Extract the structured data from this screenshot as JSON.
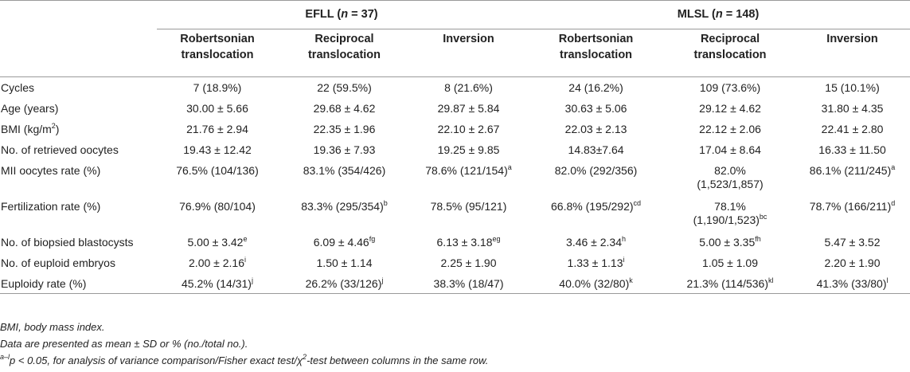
{
  "groups": [
    {
      "name": "EFLL",
      "n_prefix": "(",
      "n_var": "n",
      "n_rest": " = 37)"
    },
    {
      "name": "MLSL",
      "n_prefix": "(",
      "n_var": "n",
      "n_rest": " = 148)"
    }
  ],
  "subheaders": [
    {
      "l1": "Robertsonian",
      "l2": "translocation"
    },
    {
      "l1": "Reciprocal",
      "l2": "translocation"
    },
    {
      "l1": "Inversion",
      "l2": ""
    },
    {
      "l1": "Robertsonian",
      "l2": "translocation"
    },
    {
      "l1": "Reciprocal",
      "l2": "translocation"
    },
    {
      "l1": "Inversion",
      "l2": ""
    }
  ],
  "rows": [
    {
      "label": "Cycles",
      "label_sup": "",
      "cells": [
        {
          "v": "7 (18.9%)",
          "s": ""
        },
        {
          "v": "22 (59.5%)",
          "s": ""
        },
        {
          "v": "8 (21.6%)",
          "s": ""
        },
        {
          "v": "24 (16.2%)",
          "s": ""
        },
        {
          "v": "109 (73.6%)",
          "s": ""
        },
        {
          "v": "15 (10.1%)",
          "s": ""
        }
      ]
    },
    {
      "label": "Age (years)",
      "label_sup": "",
      "cells": [
        {
          "v": "30.00 ± 5.66",
          "s": ""
        },
        {
          "v": "29.68 ± 4.62",
          "s": ""
        },
        {
          "v": "29.87 ± 5.84",
          "s": ""
        },
        {
          "v": "30.63 ± 5.06",
          "s": ""
        },
        {
          "v": "29.12 ± 4.62",
          "s": ""
        },
        {
          "v": "31.80 ± 4.35",
          "s": ""
        }
      ]
    },
    {
      "label": "BMI (kg/m",
      "label_sup": "2",
      "label_end": ")",
      "cells": [
        {
          "v": "21.76 ± 2.94",
          "s": ""
        },
        {
          "v": "22.35 ± 1.96",
          "s": ""
        },
        {
          "v": "22.10 ± 2.67",
          "s": ""
        },
        {
          "v": "22.03 ± 2.13",
          "s": ""
        },
        {
          "v": "22.12 ± 2.06",
          "s": ""
        },
        {
          "v": "22.41 ± 2.80",
          "s": ""
        }
      ]
    },
    {
      "label": "No. of retrieved oocytes",
      "label_sup": "",
      "cells": [
        {
          "v": "19.43 ± 12.42",
          "s": ""
        },
        {
          "v": "19.36 ± 7.93",
          "s": ""
        },
        {
          "v": "19.25 ± 9.85",
          "s": ""
        },
        {
          "v": "14.83±7.64",
          "s": ""
        },
        {
          "v": "17.04 ± 8.64",
          "s": ""
        },
        {
          "v": "16.33 ± 11.50",
          "s": ""
        }
      ]
    },
    {
      "label": "MII oocytes rate (%)",
      "label_sup": "",
      "tall": true,
      "cells": [
        {
          "v": "76.5% (104/136)",
          "s": ""
        },
        {
          "v": "83.1% (354/426)",
          "s": ""
        },
        {
          "v": "78.6% (121/154)",
          "s": "a"
        },
        {
          "v": "82.0% (292/356)",
          "s": ""
        },
        {
          "v": "82.0%",
          "v2": "(1,523/1,857)",
          "s": ""
        },
        {
          "v": "86.1% (211/245)",
          "s": "a"
        }
      ]
    },
    {
      "label": "Fertilization rate (%)",
      "label_sup": "",
      "tall": true,
      "cells": [
        {
          "v": "76.9% (80/104)",
          "s": ""
        },
        {
          "v": "83.3% (295/354)",
          "s": "b"
        },
        {
          "v": "78.5% (95/121)",
          "s": ""
        },
        {
          "v": "66.8% (195/292)",
          "s": "cd"
        },
        {
          "v": "78.1%",
          "v2": "(1,190/1,523)",
          "s": "bc"
        },
        {
          "v": "78.7% (166/211)",
          "s": "d"
        }
      ]
    },
    {
      "label": "No. of biopsied blastocysts",
      "label_sup": "",
      "cells": [
        {
          "v": "5.00 ± 3.42",
          "s": "e"
        },
        {
          "v": "6.09 ± 4.46",
          "s": "fg"
        },
        {
          "v": "6.13 ± 3.18",
          "s": "eg"
        },
        {
          "v": "3.46 ± 2.34",
          "s": "h"
        },
        {
          "v": "5.00 ± 3.35",
          "s": "fh"
        },
        {
          "v": "5.47 ± 3.52",
          "s": ""
        }
      ]
    },
    {
      "label": "No. of euploid embryos",
      "label_sup": "",
      "cells": [
        {
          "v": "2.00 ± 2.16",
          "s": "i"
        },
        {
          "v": "1.50 ± 1.14",
          "s": ""
        },
        {
          "v": "2.25 ± 1.90",
          "s": ""
        },
        {
          "v": "1.33 ± 1.13",
          "s": "i"
        },
        {
          "v": "1.05 ± 1.09",
          "s": ""
        },
        {
          "v": "2.20 ± 1.90",
          "s": ""
        }
      ]
    },
    {
      "label": "Euploidy rate (%)",
      "label_sup": "",
      "cells": [
        {
          "v": "45.2% (14/31)",
          "s": "j"
        },
        {
          "v": "26.2% (33/126)",
          "s": "j"
        },
        {
          "v": "38.3% (18/47)",
          "s": ""
        },
        {
          "v": "40.0% (32/80)",
          "s": "k"
        },
        {
          "v": "21.3% (114/536)",
          "s": "kl"
        },
        {
          "v": "41.3% (33/80)",
          "s": "l"
        }
      ]
    }
  ],
  "footnotes": {
    "f1": "BMI, body mass index.",
    "f2": "Data are presented as mean ± SD or % (no./total no.).",
    "f3_sup": "a–l",
    "f3_p": "p",
    "f3_a": " < 0.05, for analysis of variance comparison/Fisher exact test/χ",
    "f3_sup2": "2",
    "f3_b": "-test between columns in the same row."
  }
}
